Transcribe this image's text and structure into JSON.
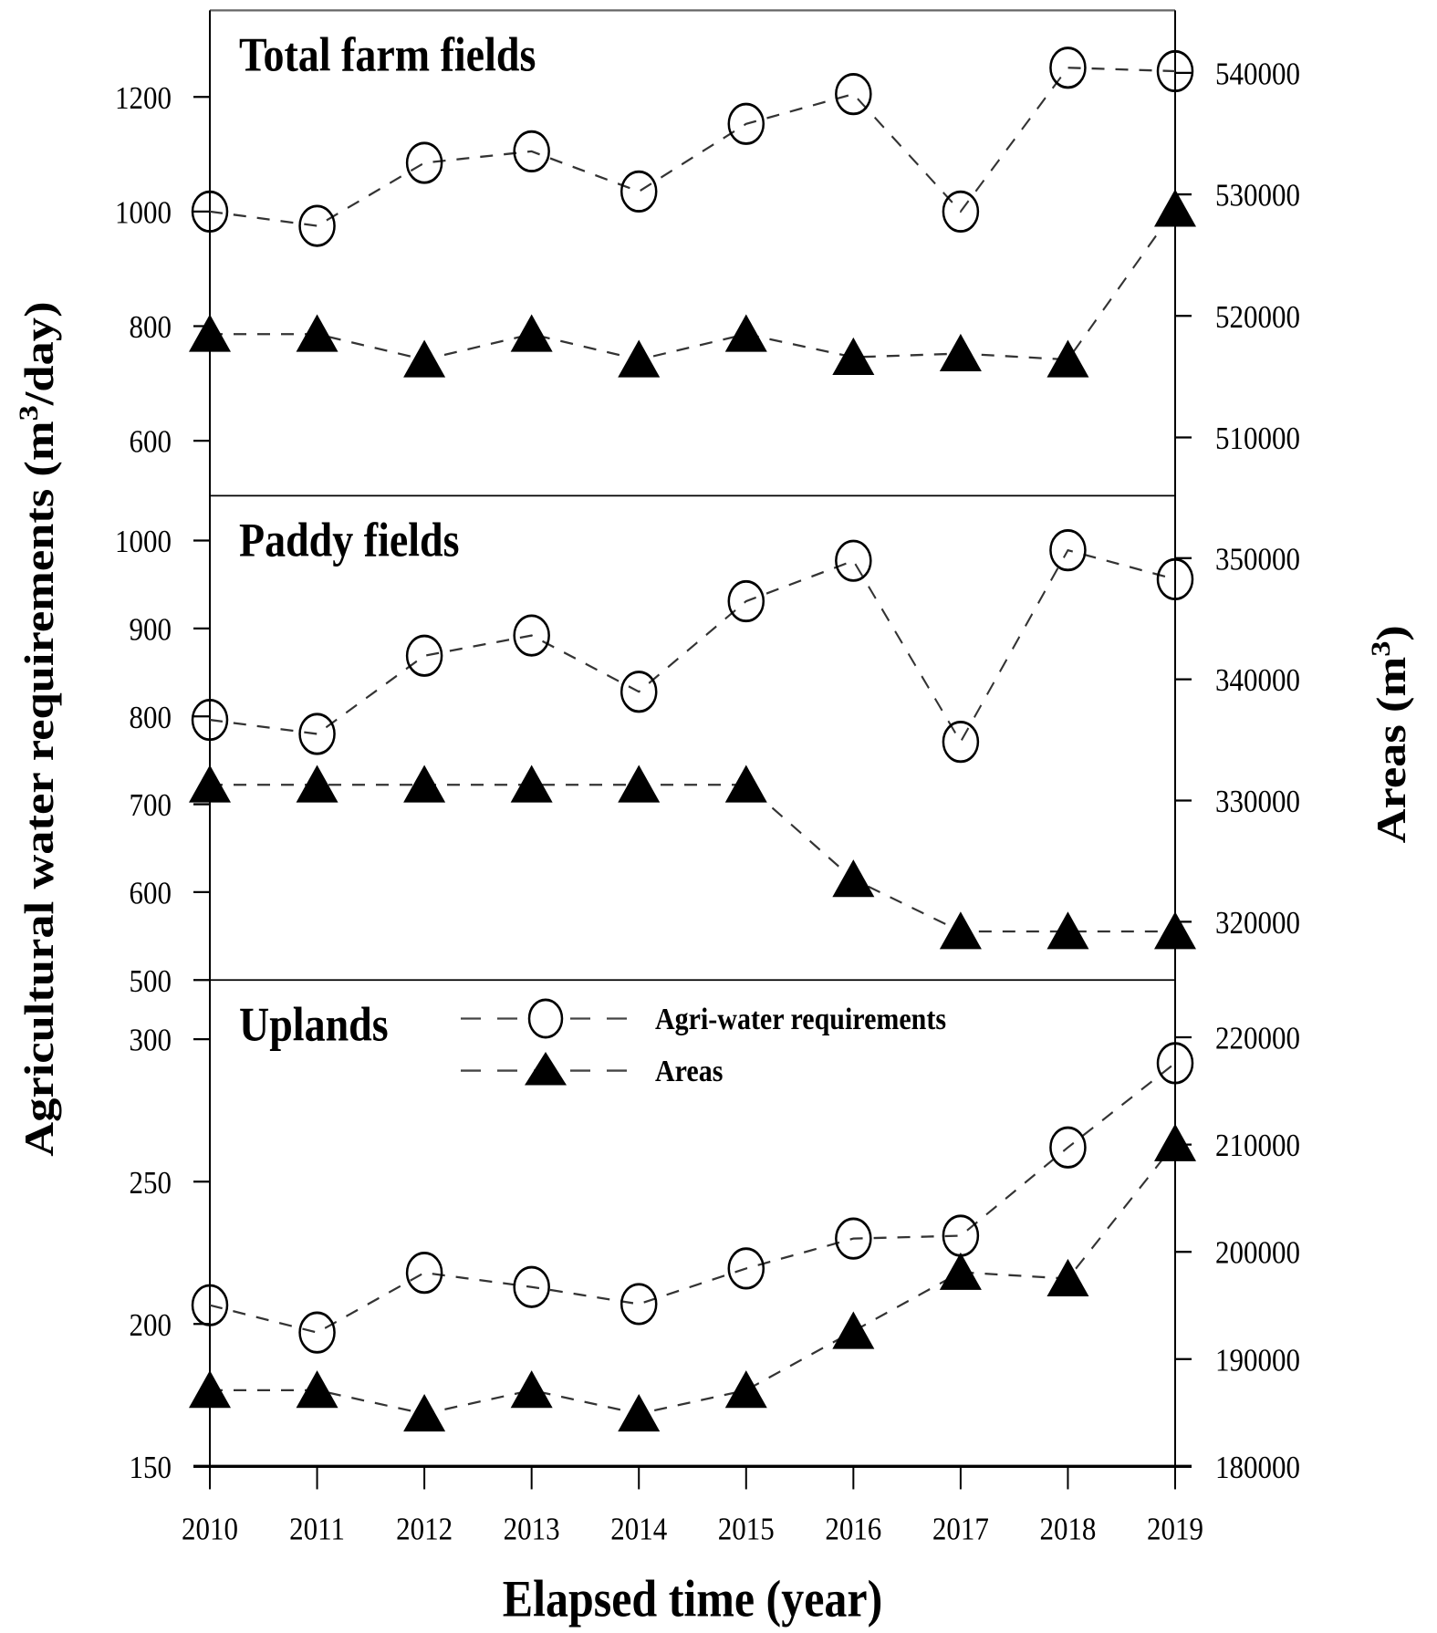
{
  "chart_data": {
    "type": "line",
    "xlabel": "Elapsed time (year)",
    "ylabel_left": "Agricultural water requirements (m³/day)",
    "ylabel_right": "Areas (m³)",
    "x": [
      2010,
      2011,
      2012,
      2013,
      2014,
      2015,
      2016,
      2017,
      2018,
      2019
    ],
    "legend": {
      "position": "upper-center of bottom panel",
      "entries": [
        {
          "label": "Agri-water requirements",
          "marker": "open-circle",
          "line": "dashed"
        },
        {
          "label": "Areas",
          "marker": "filled-triangle",
          "line": "dashed"
        }
      ]
    },
    "panels": [
      {
        "title": "Total farm fields",
        "left_ylim": [
          504,
          1351
        ],
        "left_ticks": [
          600,
          800,
          1000,
          1200
        ],
        "right_ylim": [
          505200,
          545140
        ],
        "right_ticks": [
          510000,
          520000,
          530000,
          540000
        ],
        "series": [
          {
            "name": "Agri-water requirements",
            "axis": "left",
            "values": [
              1000,
              975,
              1085,
              1105,
              1035,
              1153,
              1205,
              1000,
              1251,
              1245
            ]
          },
          {
            "name": "Areas",
            "axis": "right",
            "values": [
              518500,
              518500,
              516400,
              518500,
              516400,
              518500,
              516600,
              516900,
              516400,
              528800
            ]
          }
        ]
      },
      {
        "title": "Paddy fields",
        "left_ylim": [
          500,
          1051
        ],
        "left_ticks": [
          500,
          600,
          700,
          800,
          900,
          1000
        ],
        "right_ylim": [
          315190,
          355150
        ],
        "right_ticks": [
          320000,
          330000,
          340000,
          350000
        ],
        "series": [
          {
            "name": "Agri-water requirements",
            "axis": "left",
            "values": [
              796,
              780,
              869,
              892,
              828,
              931,
              977,
              771,
              989,
              956
            ]
          },
          {
            "name": "Areas",
            "axis": "right",
            "values": [
              331300,
              331300,
              331300,
              331300,
              331300,
              331300,
              323500,
              319200,
              319200,
              319200
            ]
          }
        ]
      },
      {
        "title": "Uplands",
        "left_ylim": [
          150,
          320.8
        ],
        "left_ticks": [
          150,
          200,
          250,
          300
        ],
        "right_ylim": [
          180000,
          225340
        ],
        "right_ticks": [
          180000,
          190000,
          200000,
          210000,
          220000
        ],
        "series": [
          {
            "name": "Agri-water requirements",
            "axis": "left",
            "values": [
              206.6,
              197,
              218,
              213,
              207,
              219.5,
              230,
              231,
              262,
              291.6
            ]
          },
          {
            "name": "Areas",
            "axis": "right",
            "values": [
              187100,
              187100,
              184900,
              187100,
              184900,
              187100,
              192600,
              198100,
              197500,
              210100
            ]
          }
        ]
      }
    ]
  }
}
